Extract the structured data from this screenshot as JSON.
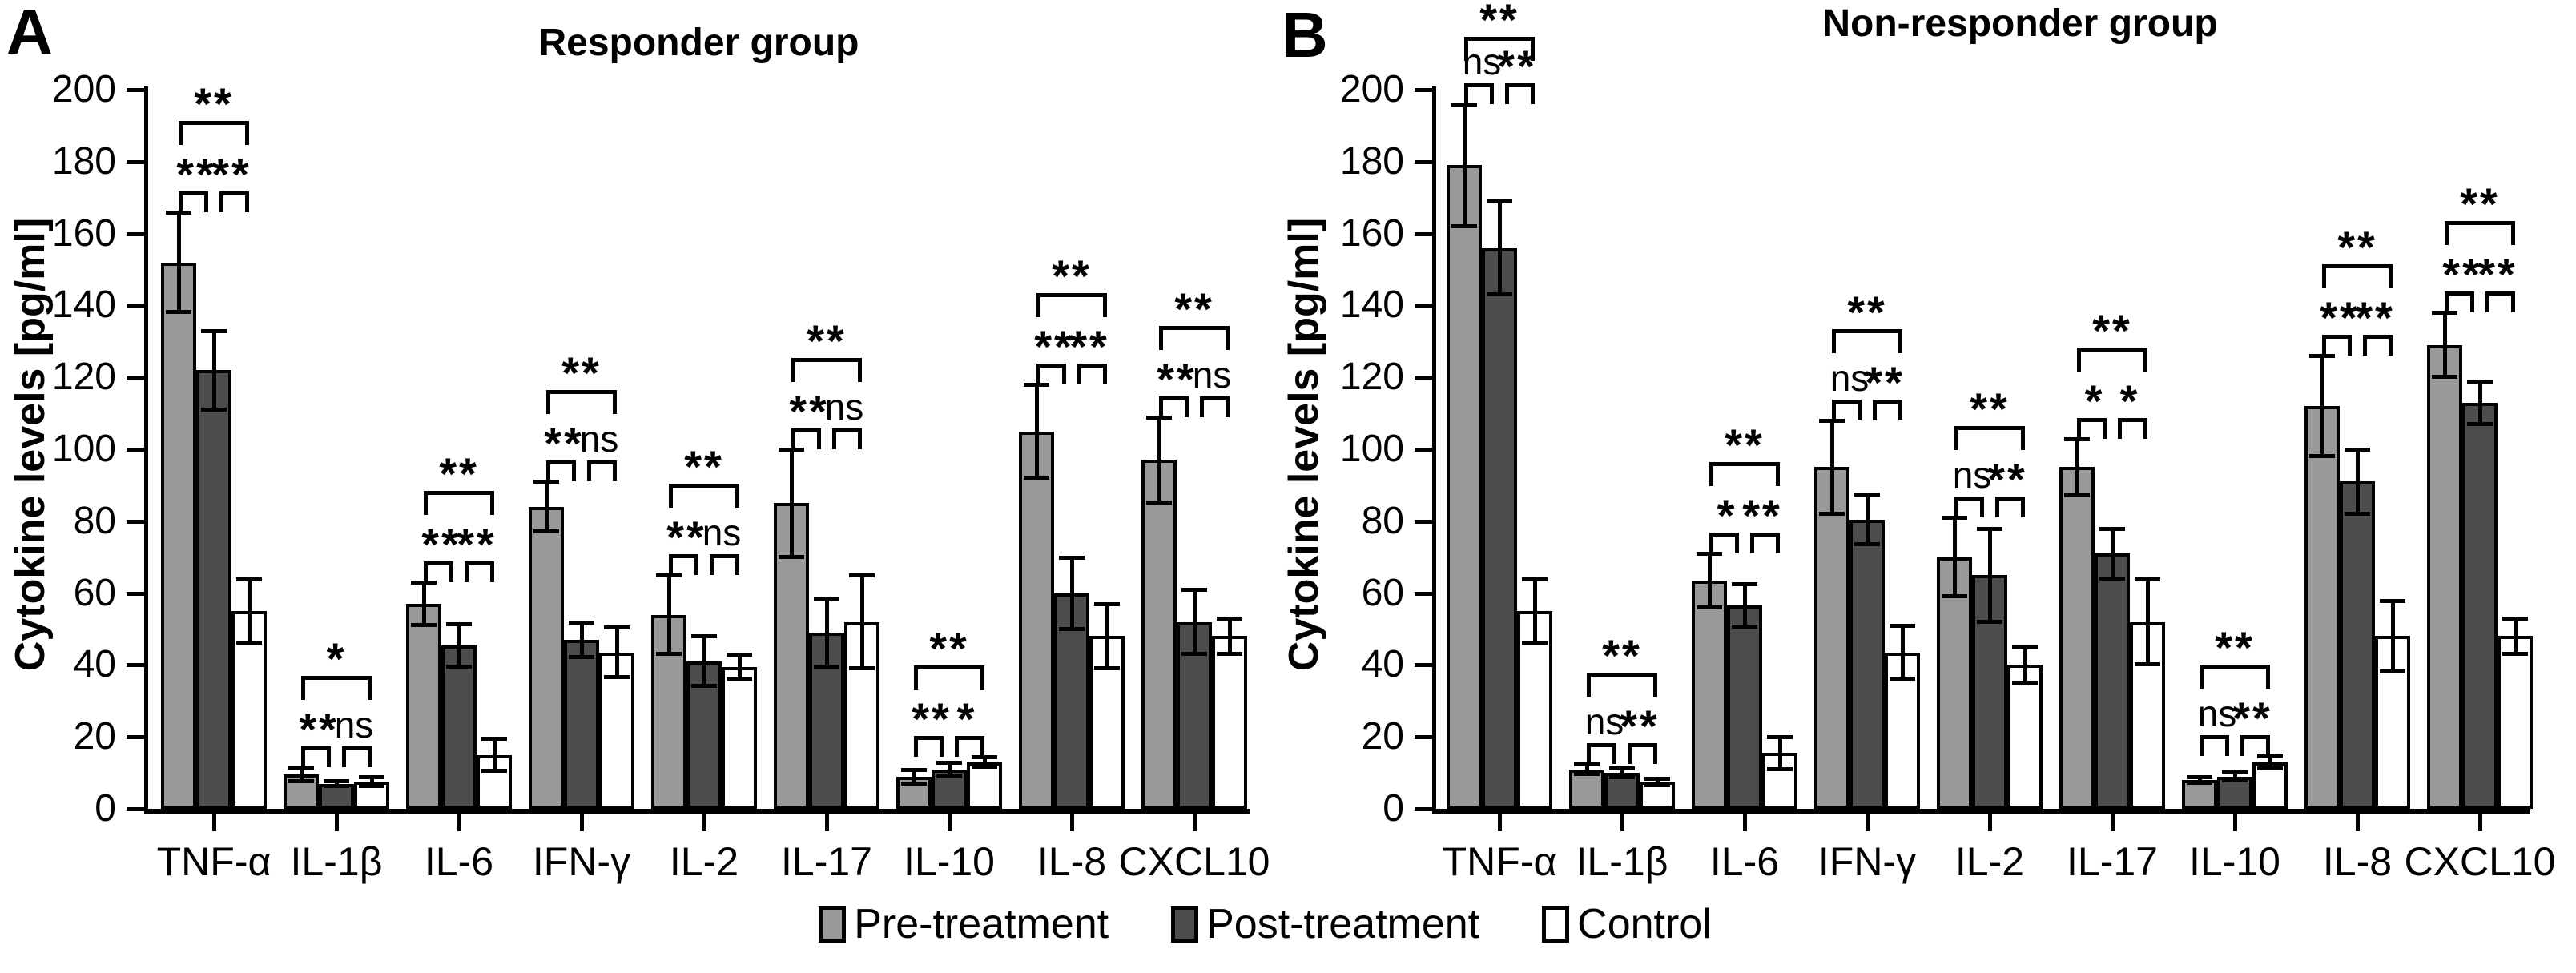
{
  "figure": {
    "background": "#ffffff",
    "bar_outline_color": "#000000",
    "legend": [
      {
        "label": "Pre-treatment",
        "color": "#999999"
      },
      {
        "label": "Post-treatment",
        "color": "#4d4d4d"
      },
      {
        "label": "Control",
        "color": "#ffffff"
      }
    ]
  },
  "chart_data": [
    {
      "type": "bar",
      "panel_label": "A",
      "title": "Responder group",
      "ylabel": "Cytokine levels [pg/ml]",
      "ylim": [
        0,
        200
      ],
      "ytick_step": 20,
      "grid": false,
      "legend_position": "bottom-center",
      "categories": [
        "TNF-α",
        "IL-1β",
        "IL-6",
        "IFN-γ",
        "IL-2",
        "IL-17",
        "IL-10",
        "IL-8",
        "CXCL10"
      ],
      "series": [
        {
          "name": "Pre-treatment",
          "color": "#999999",
          "values": [
            152,
            9.5,
            57,
            84,
            54,
            85,
            9,
            105,
            97
          ],
          "errors": [
            14,
            2,
            6,
            7,
            11,
            15,
            2,
            13,
            12
          ]
        },
        {
          "name": "Post-treatment",
          "color": "#4d4d4d",
          "values": [
            122,
            7,
            45.5,
            47,
            41,
            49,
            11,
            60,
            52
          ],
          "errors": [
            11,
            0.8,
            6,
            5,
            7,
            9.5,
            2,
            10,
            9
          ]
        },
        {
          "name": "Control",
          "color": "#ffffff",
          "values": [
            55,
            7.5,
            15,
            43.5,
            39.5,
            52,
            13,
            48,
            48
          ],
          "errors": [
            9,
            1.3,
            4.5,
            7,
            3.5,
            13,
            1.5,
            9,
            5
          ]
        }
      ],
      "significance": [
        {
          "overall": "**",
          "pre_post": "**",
          "post_control": "**"
        },
        {
          "overall": "*",
          "pre_post": "**",
          "post_control": "ns"
        },
        {
          "overall": "**",
          "pre_post": "**",
          "post_control": "**"
        },
        {
          "overall": "**",
          "pre_post": "**",
          "post_control": "ns"
        },
        {
          "overall": "**",
          "pre_post": "**",
          "post_control": "ns"
        },
        {
          "overall": "**",
          "pre_post": "**",
          "post_control": "ns"
        },
        {
          "overall": "**",
          "pre_post": "**",
          "post_control": "*"
        },
        {
          "overall": "**",
          "pre_post": "**",
          "post_control": "**"
        },
        {
          "overall": "**",
          "pre_post": "**",
          "post_control": "ns"
        }
      ]
    },
    {
      "type": "bar",
      "panel_label": "B",
      "title": "Non-responder group",
      "ylabel": "Cytokine levels [pg/ml]",
      "ylim": [
        0,
        200
      ],
      "ytick_step": 20,
      "grid": false,
      "legend_position": "bottom-center",
      "categories": [
        "TNF-α",
        "IL-1β",
        "IL-6",
        "IFN-γ",
        "IL-2",
        "IL-17",
        "IL-10",
        "IL-8",
        "CXCL10"
      ],
      "series": [
        {
          "name": "Pre-treatment",
          "color": "#999999",
          "values": [
            179,
            11,
            63.5,
            95,
            70,
            95,
            8,
            112,
            129
          ],
          "errors": [
            17,
            1.5,
            7.5,
            13,
            11,
            8,
            0.8,
            14,
            9
          ]
        },
        {
          "name": "Post-treatment",
          "color": "#4d4d4d",
          "values": [
            156,
            10,
            56.5,
            80.5,
            65,
            71,
            9,
            91,
            113
          ],
          "errors": [
            13,
            1.3,
            6,
            7,
            13,
            7,
            1.2,
            9,
            6
          ]
        },
        {
          "name": "Control",
          "color": "#ffffff",
          "values": [
            55,
            7.5,
            15.5,
            43.5,
            40,
            52,
            13,
            48,
            48
          ],
          "errors": [
            9,
            1,
            4.5,
            7.5,
            5,
            12,
            1.8,
            10,
            5
          ]
        }
      ],
      "significance": [
        {
          "overall": "**",
          "pre_post": "ns",
          "post_control": "**"
        },
        {
          "overall": "**",
          "pre_post": "ns",
          "post_control": "**"
        },
        {
          "overall": "**",
          "pre_post": "*",
          "post_control": "**"
        },
        {
          "overall": "**",
          "pre_post": "ns",
          "post_control": "**"
        },
        {
          "overall": "**",
          "pre_post": "ns",
          "post_control": "**"
        },
        {
          "overall": "**",
          "pre_post": "*",
          "post_control": "*"
        },
        {
          "overall": "**",
          "pre_post": "ns",
          "post_control": "**"
        },
        {
          "overall": "**",
          "pre_post": "**",
          "post_control": "**"
        },
        {
          "overall": "**",
          "pre_post": "**",
          "post_control": "**"
        }
      ]
    }
  ]
}
